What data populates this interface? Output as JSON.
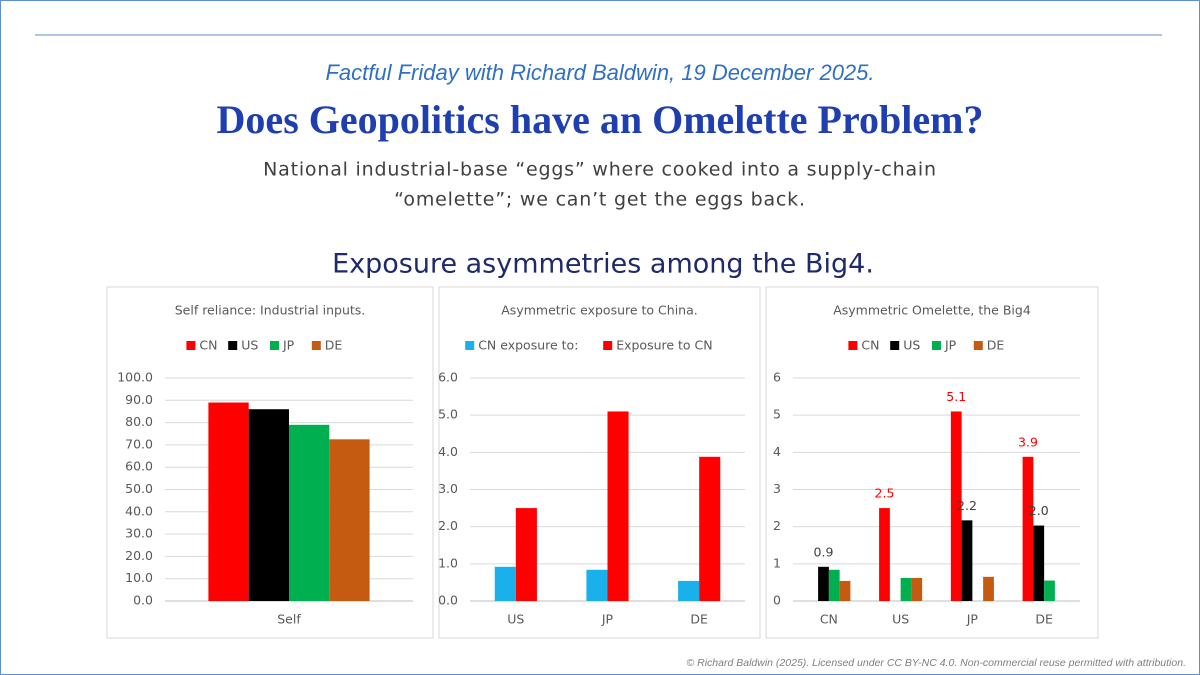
{
  "header": {
    "series": "Factful Friday with Richard Baldwin, 19 December 2025.",
    "title": "Does Geopolitics have an Omelette Problem?",
    "subtitle_lines": [
      "National industrial-base “eggs” where cooked into a supply-chain",
      "“omelette”; we can’t get the eggs back."
    ]
  },
  "section_title": "Exposure asymmetries among the Big4.",
  "chart_data": [
    {
      "type": "bar",
      "title": "Self reliance: Industrial inputs.",
      "categories": [
        "Self"
      ],
      "series": [
        {
          "name": "CN",
          "color": "#ff0000",
          "values": [
            89
          ]
        },
        {
          "name": "US",
          "color": "#000000",
          "values": [
            86
          ]
        },
        {
          "name": "JP",
          "color": "#00b050",
          "values": [
            79
          ]
        },
        {
          "name": "DE",
          "color": "#c55a11",
          "values": [
            72.5
          ]
        }
      ],
      "ylim": [
        0,
        100
      ],
      "yticks": [
        {
          "value": 0,
          "label": "0.0"
        },
        {
          "value": 10,
          "label": "10.0"
        },
        {
          "value": 20,
          "label": "20.0"
        },
        {
          "value": 30,
          "label": "30.0"
        },
        {
          "value": 40,
          "label": "40.0"
        },
        {
          "value": 50,
          "label": "50.0"
        },
        {
          "value": 60,
          "label": "60.0"
        },
        {
          "value": 70,
          "label": "70.0"
        },
        {
          "value": 80,
          "label": "80.0"
        },
        {
          "value": 90,
          "label": "90.0"
        },
        {
          "value": 100,
          "label": "100.0"
        }
      ],
      "grid": true,
      "legend": "top"
    },
    {
      "type": "bar",
      "title": "Asymmetric exposure to China.",
      "categories": [
        "US",
        "JP",
        "DE"
      ],
      "series": [
        {
          "name": "CN exposure to:",
          "color": "#1ab0ec",
          "values": [
            0.92,
            0.84,
            0.54
          ]
        },
        {
          "name": "Exposure to CN",
          "color": "#ff0000",
          "values": [
            2.5,
            5.1,
            3.88
          ]
        }
      ],
      "ylim": [
        0,
        6
      ],
      "yticks": [
        {
          "value": 0,
          "label": "0.0"
        },
        {
          "value": 1,
          "label": "1.0"
        },
        {
          "value": 2,
          "label": "2.0"
        },
        {
          "value": 3,
          "label": "3.0"
        },
        {
          "value": 4,
          "label": "4.0"
        },
        {
          "value": 5,
          "label": "5.0"
        },
        {
          "value": 6,
          "label": "6.0"
        }
      ],
      "grid": true,
      "legend": "top"
    },
    {
      "type": "bar",
      "title": "Asymmetric Omelette, the Big4",
      "categories": [
        "CN",
        "US",
        "JP",
        "DE"
      ],
      "series": [
        {
          "name": "CN",
          "color": "#ff0000",
          "values": [
            null,
            2.5,
            5.1,
            3.88
          ],
          "value_labels": [
            null,
            "2.5",
            "5.1",
            "3.9"
          ]
        },
        {
          "name": "US",
          "color": "#000000",
          "values": [
            0.92,
            null,
            2.17,
            2.03
          ],
          "value_labels": [
            "0.9",
            null,
            "2.2",
            "2.0"
          ]
        },
        {
          "name": "JP",
          "color": "#00b050",
          "values": [
            0.84,
            0.62,
            null,
            0.55
          ]
        },
        {
          "name": "DE",
          "color": "#c55a11",
          "values": [
            0.54,
            0.62,
            0.65,
            null
          ]
        }
      ],
      "ylim": [
        0,
        6
      ],
      "yticks": [
        0,
        1,
        2,
        3,
        4,
        5,
        6
      ],
      "grid": true,
      "legend": "top"
    }
  ],
  "footer": "© Richard Baldwin (2025). Licensed under CC BY-NC 4.0. Non-commercial reuse permitted with attribution."
}
